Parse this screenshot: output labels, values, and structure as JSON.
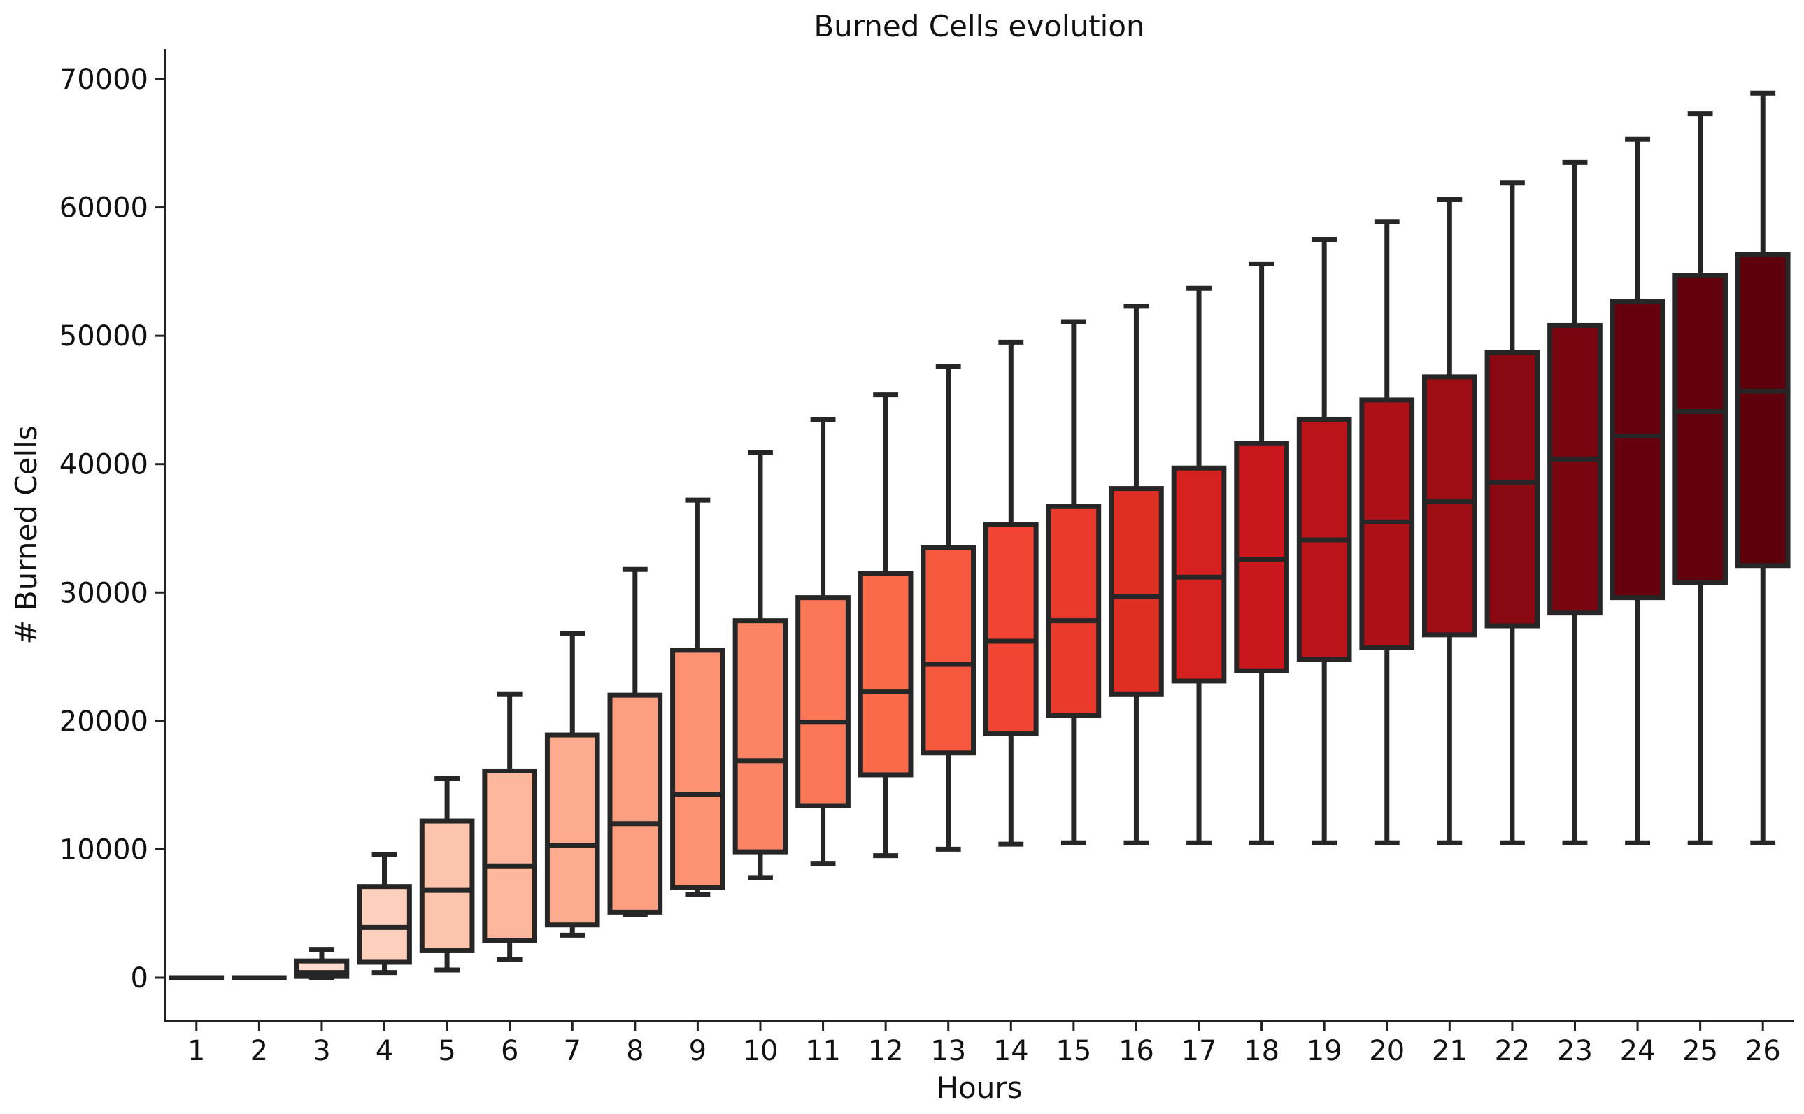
{
  "chart_data": {
    "type": "box",
    "title": "Burned Cells evolution",
    "xlabel": "Hours",
    "ylabel": "# Burned Cells",
    "categories": [
      "1",
      "2",
      "3",
      "4",
      "5",
      "6",
      "7",
      "8",
      "9",
      "10",
      "11",
      "12",
      "13",
      "14",
      "15",
      "16",
      "17",
      "18",
      "19",
      "20",
      "21",
      "22",
      "23",
      "24",
      "25",
      "26"
    ],
    "ylim": [
      -3400,
      72500
    ],
    "yticks": [
      0,
      10000,
      20000,
      30000,
      40000,
      50000,
      60000,
      70000
    ],
    "ytick_labels": [
      "0",
      "10000",
      "20000",
      "30000",
      "40000",
      "50000",
      "60000",
      "70000"
    ],
    "grid": false,
    "palette": "Reds",
    "boxes": [
      {
        "category": "1",
        "whisker_low": 0,
        "q1": 0,
        "median": 0,
        "q3": 0,
        "whisker_high": 0
      },
      {
        "category": "2",
        "whisker_low": 0,
        "q1": 0,
        "median": 0,
        "q3": 0,
        "whisker_high": 0
      },
      {
        "category": "3",
        "whisker_low": 0,
        "q1": 100,
        "median": 400,
        "q3": 1300,
        "whisker_high": 2200
      },
      {
        "category": "4",
        "whisker_low": 400,
        "q1": 1200,
        "median": 3900,
        "q3": 7100,
        "whisker_high": 9600
      },
      {
        "category": "5",
        "whisker_low": 600,
        "q1": 2100,
        "median": 6800,
        "q3": 12200,
        "whisker_high": 15500
      },
      {
        "category": "6",
        "whisker_low": 1400,
        "q1": 2900,
        "median": 8700,
        "q3": 16100,
        "whisker_high": 22100
      },
      {
        "category": "7",
        "whisker_low": 3300,
        "q1": 4100,
        "median": 10300,
        "q3": 18900,
        "whisker_high": 26800
      },
      {
        "category": "8",
        "whisker_low": 4900,
        "q1": 5100,
        "median": 12000,
        "q3": 22000,
        "whisker_high": 31800
      },
      {
        "category": "9",
        "whisker_low": 6500,
        "q1": 7000,
        "median": 14300,
        "q3": 25500,
        "whisker_high": 37200
      },
      {
        "category": "10",
        "whisker_low": 7800,
        "q1": 9800,
        "median": 16900,
        "q3": 27800,
        "whisker_high": 40900
      },
      {
        "category": "11",
        "whisker_low": 8900,
        "q1": 13400,
        "median": 19900,
        "q3": 29600,
        "whisker_high": 43500
      },
      {
        "category": "12",
        "whisker_low": 9500,
        "q1": 15800,
        "median": 22300,
        "q3": 31500,
        "whisker_high": 45400
      },
      {
        "category": "13",
        "whisker_low": 10000,
        "q1": 17500,
        "median": 24400,
        "q3": 33500,
        "whisker_high": 47600
      },
      {
        "category": "14",
        "whisker_low": 10400,
        "q1": 19000,
        "median": 26200,
        "q3": 35300,
        "whisker_high": 49500
      },
      {
        "category": "15",
        "whisker_low": 10500,
        "q1": 20400,
        "median": 27800,
        "q3": 36700,
        "whisker_high": 51100
      },
      {
        "category": "16",
        "whisker_low": 10500,
        "q1": 22100,
        "median": 29700,
        "q3": 38100,
        "whisker_high": 52300
      },
      {
        "category": "17",
        "whisker_low": 10500,
        "q1": 23100,
        "median": 31200,
        "q3": 39700,
        "whisker_high": 53700
      },
      {
        "category": "18",
        "whisker_low": 10500,
        "q1": 23900,
        "median": 32600,
        "q3": 41600,
        "whisker_high": 55600
      },
      {
        "category": "19",
        "whisker_low": 10500,
        "q1": 24800,
        "median": 34100,
        "q3": 43500,
        "whisker_high": 57500
      },
      {
        "category": "20",
        "whisker_low": 10500,
        "q1": 25700,
        "median": 35500,
        "q3": 45000,
        "whisker_high": 58900
      },
      {
        "category": "21",
        "whisker_low": 10500,
        "q1": 26700,
        "median": 37100,
        "q3": 46800,
        "whisker_high": 60600
      },
      {
        "category": "22",
        "whisker_low": 10500,
        "q1": 27400,
        "median": 38600,
        "q3": 48700,
        "whisker_high": 61900
      },
      {
        "category": "23",
        "whisker_low": 10500,
        "q1": 28400,
        "median": 40400,
        "q3": 50800,
        "whisker_high": 63500
      },
      {
        "category": "24",
        "whisker_low": 10500,
        "q1": 29600,
        "median": 42200,
        "q3": 52700,
        "whisker_high": 65300
      },
      {
        "category": "25",
        "whisker_low": 10500,
        "q1": 30800,
        "median": 44100,
        "q3": 54700,
        "whisker_high": 67300
      },
      {
        "category": "26",
        "whisker_low": 10500,
        "q1": 32100,
        "median": 45700,
        "q3": 56300,
        "whisker_high": 68900
      }
    ],
    "colors": [
      "#fff0e9",
      "#fee6da",
      "#fedbcc",
      "#fdd0bd",
      "#fcc4ad",
      "#fcb79c",
      "#fcab8f",
      "#fc9e80",
      "#fc9272",
      "#fb8464",
      "#fb7757",
      "#fa6a4a",
      "#f6583e",
      "#f14432",
      "#ea3a2c",
      "#df2e24",
      "#d52221",
      "#c9181d",
      "#bb141a",
      "#ad1117",
      "#9c0d14",
      "#8a0811",
      "#780510",
      "#67000d",
      "#62000c",
      "#5e000b"
    ]
  }
}
